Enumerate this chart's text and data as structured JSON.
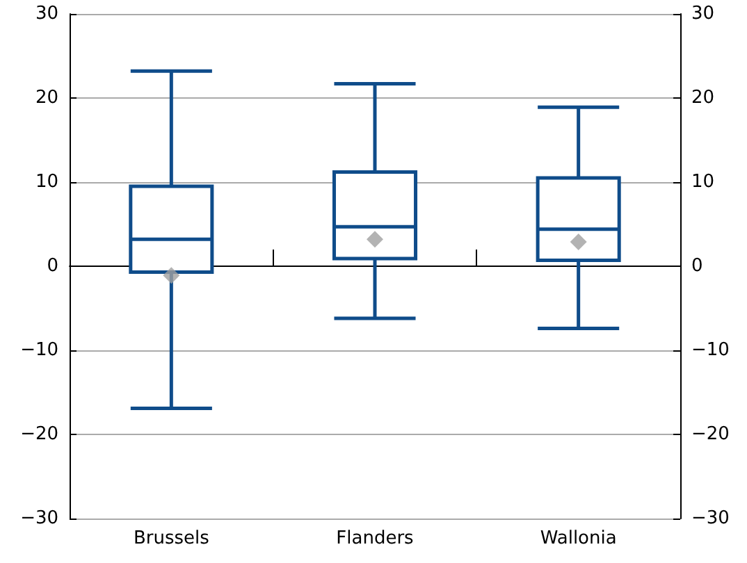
{
  "chart_data": {
    "type": "box",
    "categories": [
      "Brussels",
      "Flanders",
      "Wallonia"
    ],
    "series": [
      {
        "color": "#0f4c8a",
        "boxes": [
          {
            "low": -16.9,
            "q1": -0.7,
            "median": 3.2,
            "q3": 9.5,
            "high": 23.2
          },
          {
            "low": -6.2,
            "q1": 0.9,
            "median": 4.7,
            "q3": 11.2,
            "high": 21.7
          },
          {
            "low": -7.4,
            "q1": 0.7,
            "median": 4.4,
            "q3": 10.5,
            "high": 18.9
          }
        ]
      },
      {
        "type": "scatter",
        "color": "#a0a0a0",
        "marker": "diamond",
        "x": [
          "Brussels",
          "Flanders",
          "Wallonia"
        ],
        "values": [
          -1.1,
          3.2,
          2.9
        ]
      }
    ],
    "ylim": [
      -30,
      30
    ],
    "yticks": [
      -30,
      -20,
      -10,
      0,
      10,
      20,
      30
    ],
    "y2lim": [
      -30,
      30
    ],
    "y2ticks": [
      -30,
      -20,
      -10,
      0,
      10,
      20,
      30
    ],
    "grid": "y"
  }
}
